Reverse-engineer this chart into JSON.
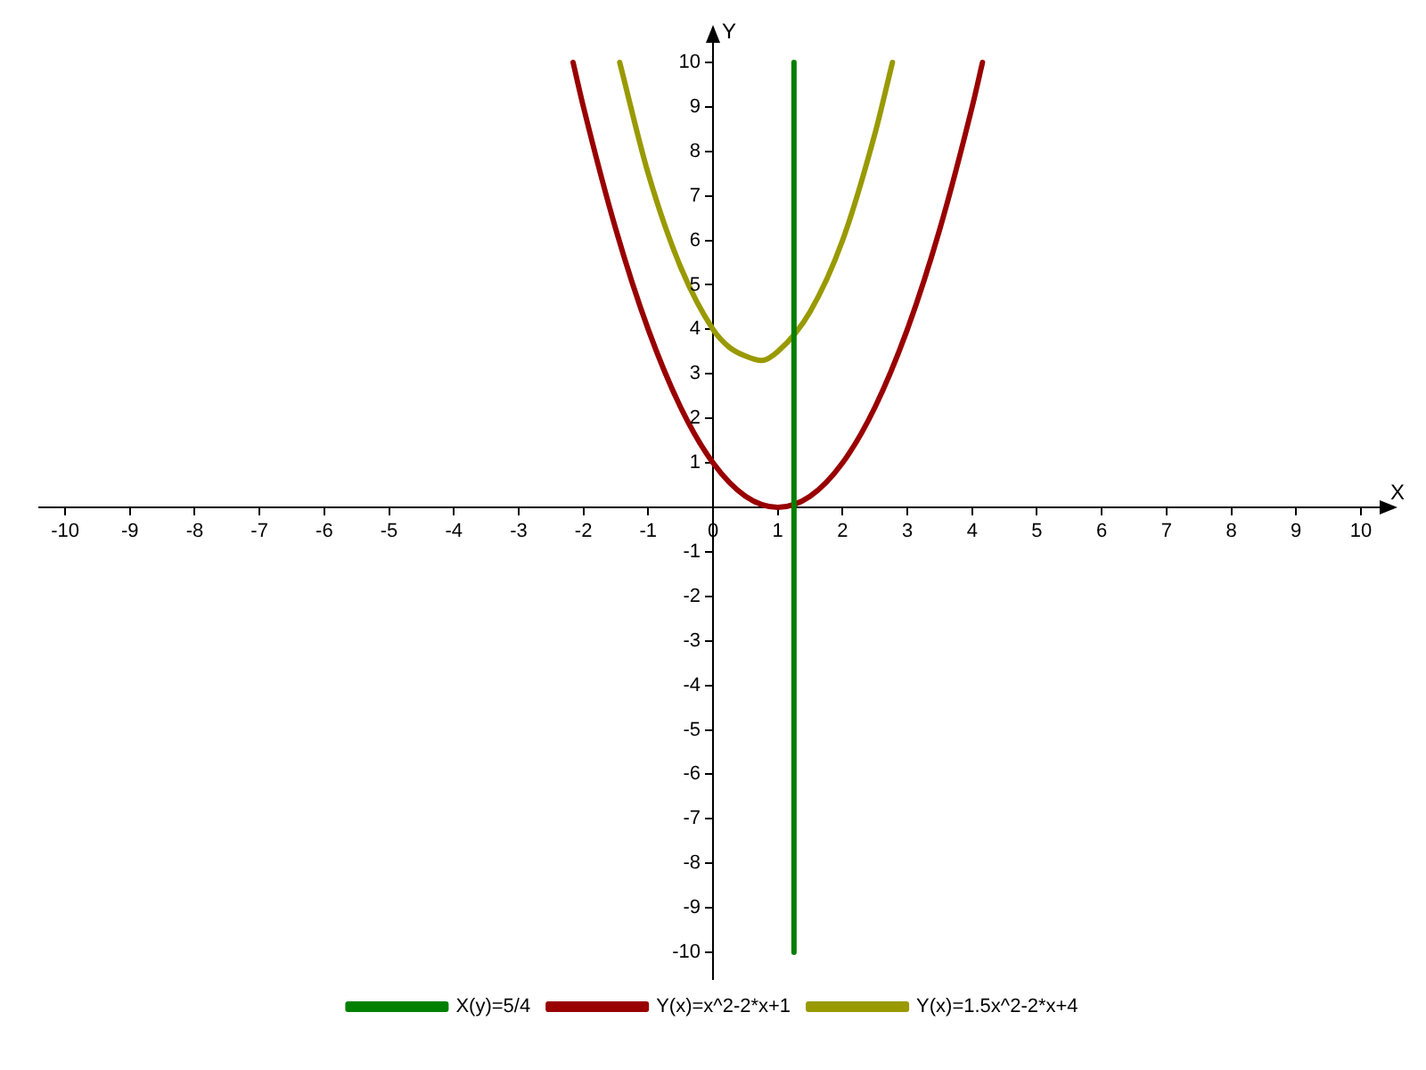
{
  "chart_data": {
    "type": "line",
    "xlabel": "X",
    "ylabel": "Y",
    "xlim": [
      -10.4,
      10.4
    ],
    "ylim": [
      -10.6,
      10.6
    ],
    "xticks": [
      -10,
      -9,
      -8,
      -7,
      -6,
      -5,
      -4,
      -3,
      -2,
      -1,
      0,
      1,
      2,
      3,
      4,
      5,
      6,
      7,
      8,
      9,
      10
    ],
    "yticks": [
      -10,
      -9,
      -8,
      -7,
      -6,
      -5,
      -4,
      -3,
      -2,
      -1,
      {
        "value": 0,
        "label": null
      },
      1,
      2,
      3,
      4,
      5,
      6,
      7,
      8,
      9,
      10
    ],
    "grid": false,
    "legend": "bottom",
    "marker": "none",
    "line_style": "solid",
    "series": [
      {
        "name": "X(y)=5/4",
        "color": "#008000",
        "x": [
          1.25,
          1.25
        ],
        "values": [
          -10,
          10
        ]
      },
      {
        "name": "Y(x)=x^2-2*x+1",
        "color": "#990000",
        "x": [
          -2.16,
          -2,
          -1.5,
          -1,
          -0.5,
          0,
          0.5,
          1,
          1.5,
          2,
          2.5,
          3,
          3.5,
          4,
          4.16
        ],
        "values": [
          10,
          9,
          6.25,
          4,
          2.25,
          1,
          0.25,
          0,
          0.25,
          1,
          2.25,
          4,
          6.25,
          9,
          10
        ]
      },
      {
        "name": "Y(x)=1.5x^2-2*x+4",
        "color": "#999900",
        "x": [
          -1.44,
          -1,
          -0.5,
          0,
          0.25,
          0.5,
          0.75,
          1,
          1.5,
          2,
          2.5,
          2.77
        ],
        "values": [
          10,
          7.5,
          5.4,
          4,
          3.6,
          3.4,
          3.3,
          3.5,
          4.4,
          6,
          8.4,
          10
        ]
      }
    ]
  }
}
